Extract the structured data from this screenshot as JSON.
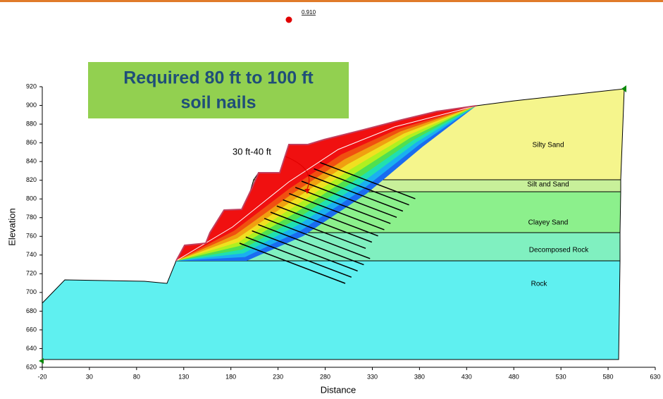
{
  "chart_data": {
    "type": "slope-section",
    "xlabel": "Distance",
    "ylabel": "Elevation",
    "xlim": [
      -20,
      630
    ],
    "ylim": [
      620,
      920
    ],
    "xticks": [
      -20,
      30,
      80,
      130,
      180,
      230,
      280,
      330,
      380,
      430,
      480,
      530,
      580,
      630
    ],
    "yticks": [
      620,
      640,
      660,
      680,
      700,
      720,
      740,
      760,
      780,
      800,
      820,
      840,
      860,
      880,
      900,
      920
    ],
    "callout": [
      "Required 80 ft to 100 ft",
      "soil nails"
    ],
    "nail_note": "30 ft-40 ft",
    "factor_of_safety": {
      "value": 0.91,
      "label": "0.910"
    },
    "layers": [
      "Silty Sand",
      "Silt and Sand",
      "Clayey Sand",
      "Decomposed Rock",
      "Rock"
    ]
  }
}
